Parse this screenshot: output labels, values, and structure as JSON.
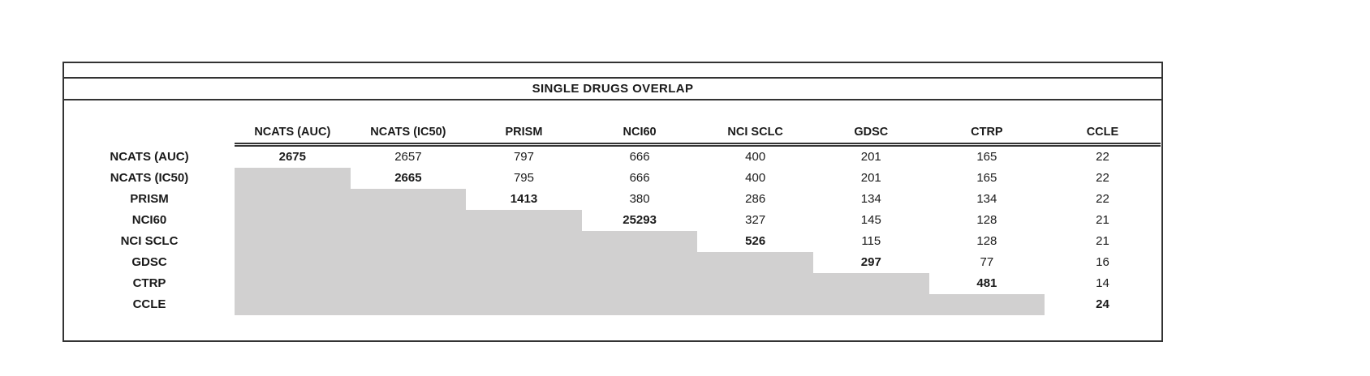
{
  "chart_data": {
    "type": "table",
    "title": "SINGLE DRUGS OVERLAP",
    "columns": [
      "NCATS (AUC)",
      "NCATS (IC50)",
      "PRISM",
      "NCI60",
      "NCI SCLC",
      "GDSC",
      "CTRP",
      "CCLE"
    ],
    "rows": [
      "NCATS (AUC)",
      "NCATS (IC50)",
      "PRISM",
      "NCI60",
      "NCI SCLC",
      "GDSC",
      "CTRP",
      "CCLE"
    ],
    "matrix": [
      [
        2675,
        2657,
        797,
        666,
        400,
        201,
        165,
        22
      ],
      [
        null,
        2665,
        795,
        666,
        400,
        201,
        165,
        22
      ],
      [
        null,
        null,
        1413,
        380,
        286,
        134,
        134,
        22
      ],
      [
        null,
        null,
        null,
        25293,
        327,
        145,
        128,
        21
      ],
      [
        null,
        null,
        null,
        null,
        526,
        115,
        128,
        21
      ],
      [
        null,
        null,
        null,
        null,
        null,
        297,
        77,
        16
      ],
      [
        null,
        null,
        null,
        null,
        null,
        null,
        481,
        14
      ],
      [
        null,
        null,
        null,
        null,
        null,
        null,
        null,
        24
      ]
    ],
    "diagonal_bold": true,
    "lower_triangle_shaded": true,
    "shaded_color": "#d1d0d0",
    "border_color": "#333333",
    "legend_position": "none",
    "grid": false
  }
}
